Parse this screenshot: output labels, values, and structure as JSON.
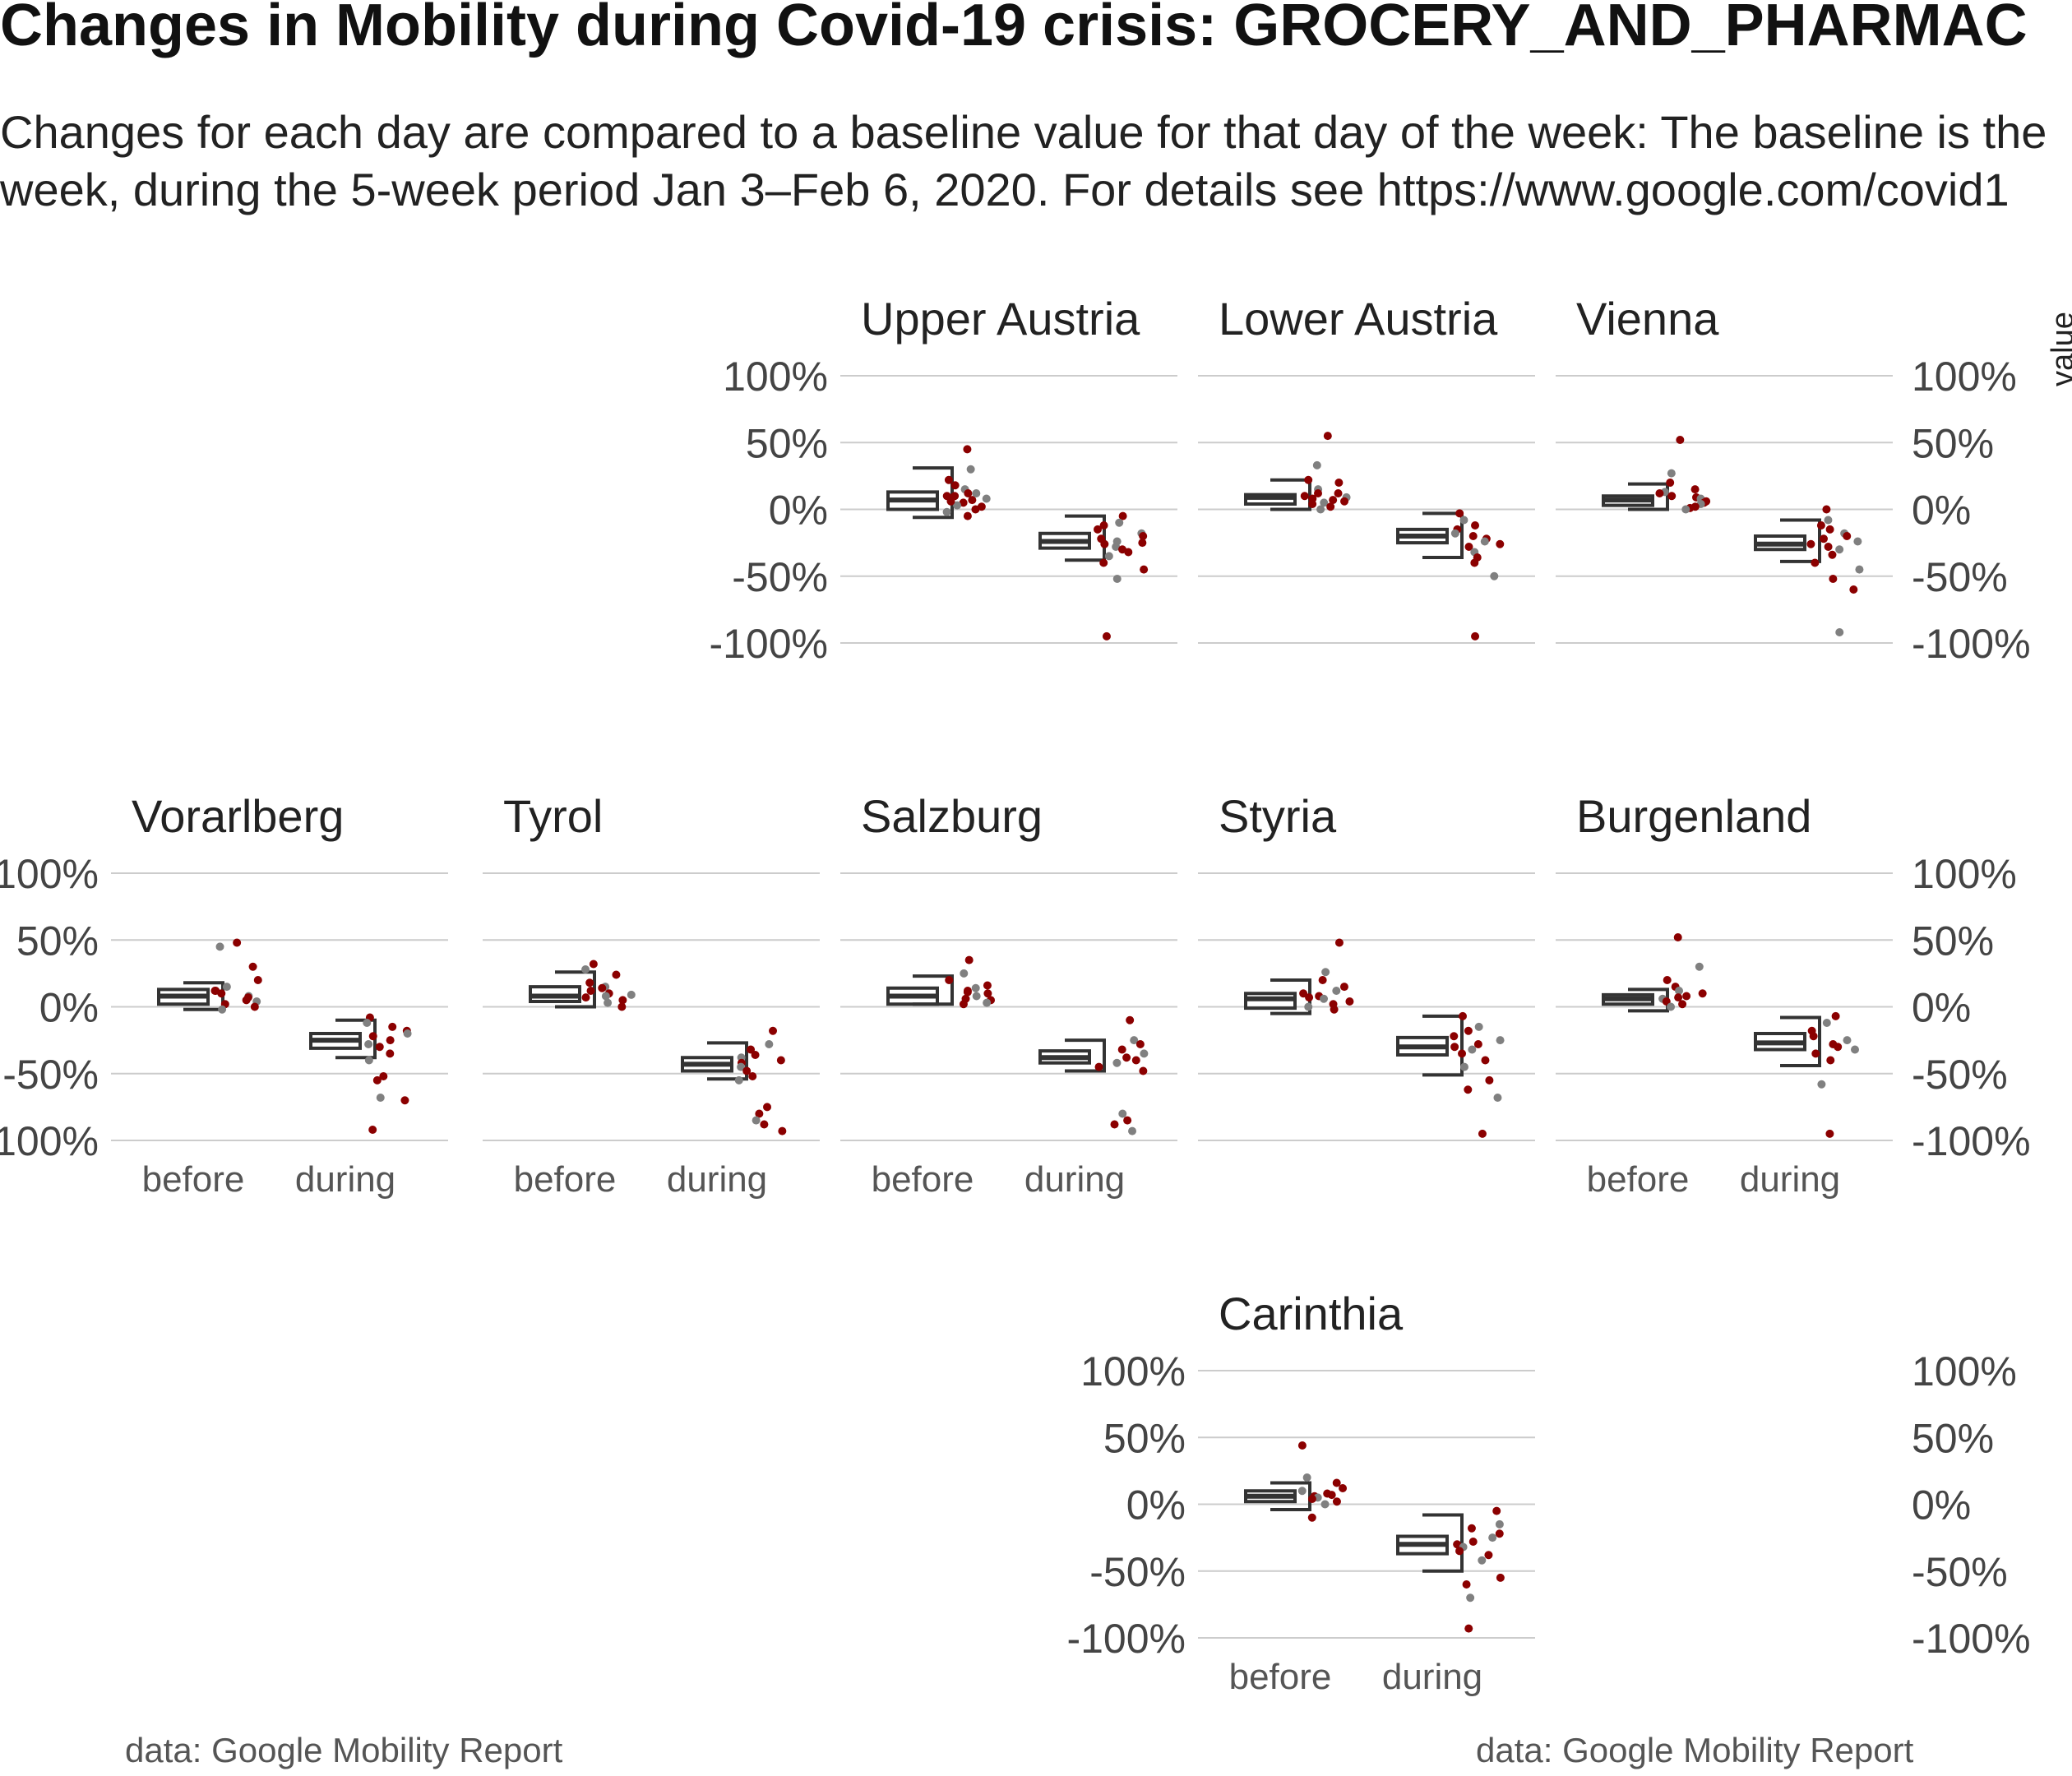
{
  "title": "Changes in Mobility during Covid-19 crisis: GROCERY_AND_PHARMAC",
  "subtitle_line1": "Changes for each day are compared to a baseline value for that day of the week: The baseline is the",
  "subtitle_line2": "week, during the 5-week period Jan 3–Feb 6, 2020. For details see https://www.google.com/covid1",
  "caption_left": "data: Google Mobility Report",
  "caption_right": "data: Google Mobility Report",
  "legend_title": "value",
  "colors": {
    "point_red": "#8b0000",
    "point_grey": "#808080",
    "box": "#333333",
    "grid": "#cccccc"
  },
  "chart_data": {
    "type": "boxplot with jittered points (faceted)",
    "categories": [
      "before",
      "during"
    ],
    "y_ticks": [
      "100%",
      "50%",
      "0%",
      "-50%",
      "-100%"
    ],
    "y_tick_values": [
      100,
      50,
      0,
      -50,
      -100
    ],
    "ylim": [
      -100,
      100
    ],
    "grid": true,
    "legend_placement": "right",
    "facets": [
      {
        "name": "Upper Austria",
        "before": {
          "q1": 0,
          "median": 7,
          "q3": 13,
          "whisker_low": -6,
          "whisker_high": 31
        },
        "during": {
          "q1": -29,
          "median": -24,
          "q3": -18,
          "whisker_low": -38,
          "whisker_high": -5
        },
        "points_before": [
          45,
          30,
          22,
          18,
          15,
          12,
          10,
          8,
          7,
          5,
          3,
          2,
          0,
          -2,
          -5,
          10,
          12,
          6
        ],
        "points_during": [
          -5,
          -10,
          -12,
          -15,
          -18,
          -20,
          -22,
          -24,
          -25,
          -26,
          -28,
          -30,
          -32,
          -35,
          -40,
          -45,
          -52,
          -95
        ]
      },
      {
        "name": "Lower Austria",
        "before": {
          "q1": 4,
          "median": 9,
          "q3": 11,
          "whisker_low": 0,
          "whisker_high": 22
        },
        "during": {
          "q1": -25,
          "median": -20,
          "q3": -15,
          "whisker_low": -36,
          "whisker_high": -3
        },
        "points_before": [
          55,
          33,
          22,
          20,
          15,
          12,
          10,
          9,
          8,
          6,
          5,
          4,
          2,
          0,
          12,
          7
        ],
        "points_during": [
          -3,
          -8,
          -12,
          -15,
          -18,
          -20,
          -22,
          -24,
          -26,
          -28,
          -32,
          -36,
          -40,
          -50,
          -95
        ]
      },
      {
        "name": "Vienna",
        "before": {
          "q1": 3,
          "median": 7,
          "q3": 10,
          "whisker_low": 0,
          "whisker_high": 19
        },
        "during": {
          "q1": -30,
          "median": -26,
          "q3": -20,
          "whisker_low": -39,
          "whisker_high": -8
        },
        "points_before": [
          52,
          27,
          20,
          15,
          13,
          10,
          9,
          8,
          6,
          5,
          4,
          2,
          1,
          0,
          12
        ],
        "points_during": [
          0,
          -8,
          -12,
          -15,
          -18,
          -20,
          -22,
          -24,
          -26,
          -28,
          -30,
          -34,
          -40,
          -45,
          -52,
          -60,
          -92
        ]
      },
      {
        "name": "Vorarlberg",
        "before": {
          "q1": 2,
          "median": 8,
          "q3": 13,
          "whisker_low": -2,
          "whisker_high": 18
        },
        "during": {
          "q1": -31,
          "median": -25,
          "q3": -20,
          "whisker_low": -38,
          "whisker_high": -10
        },
        "points_before": [
          48,
          45,
          30,
          20,
          15,
          12,
          10,
          8,
          7,
          5,
          4,
          2,
          0,
          -2,
          12
        ],
        "points_during": [
          -8,
          -12,
          -15,
          -18,
          -20,
          -22,
          -25,
          -28,
          -30,
          -35,
          -40,
          -52,
          -55,
          -68,
          -70,
          -92
        ]
      },
      {
        "name": "Tyrol",
        "before": {
          "q1": 4,
          "median": 8,
          "q3": 15,
          "whisker_low": 0,
          "whisker_high": 26
        },
        "during": {
          "q1": -48,
          "median": -43,
          "q3": -38,
          "whisker_low": -54,
          "whisker_high": -27
        },
        "points_before": [
          32,
          28,
          24,
          18,
          15,
          12,
          10,
          8,
          7,
          5,
          3,
          0,
          14,
          9
        ],
        "points_during": [
          -18,
          -28,
          -32,
          -36,
          -38,
          -40,
          -42,
          -45,
          -48,
          -52,
          -55,
          -75,
          -80,
          -85,
          -88,
          -93
        ]
      },
      {
        "name": "Salzburg",
        "before": {
          "q1": 2,
          "median": 8,
          "q3": 14,
          "whisker_low": 2,
          "whisker_high": 23
        },
        "during": {
          "q1": -42,
          "median": -38,
          "q3": -33,
          "whisker_low": -48,
          "whisker_high": -25
        },
        "points_before": [
          35,
          25,
          20,
          16,
          14,
          12,
          10,
          8,
          6,
          5,
          3,
          2,
          11
        ],
        "points_during": [
          -10,
          -25,
          -28,
          -32,
          -35,
          -38,
          -40,
          -42,
          -45,
          -48,
          -80,
          -85,
          -88,
          -93
        ]
      },
      {
        "name": "Styria",
        "before": {
          "q1": -1,
          "median": 6,
          "q3": 10,
          "whisker_low": -5,
          "whisker_high": 20
        },
        "during": {
          "q1": -36,
          "median": -30,
          "q3": -23,
          "whisker_low": -51,
          "whisker_high": -7
        },
        "points_before": [
          48,
          26,
          20,
          15,
          12,
          10,
          8,
          6,
          4,
          2,
          0,
          -2,
          7
        ],
        "points_during": [
          -7,
          -15,
          -18,
          -22,
          -25,
          -28,
          -30,
          -32,
          -35,
          -40,
          -45,
          -55,
          -62,
          -68,
          -95
        ]
      },
      {
        "name": "Burgenland",
        "before": {
          "q1": 2,
          "median": 6,
          "q3": 9,
          "whisker_low": -3,
          "whisker_high": 13
        },
        "during": {
          "q1": -32,
          "median": -27,
          "q3": -20,
          "whisker_low": -44,
          "whisker_high": -8
        },
        "points_before": [
          52,
          30,
          20,
          15,
          12,
          10,
          8,
          6,
          4,
          2,
          0,
          7
        ],
        "points_during": [
          -7,
          -12,
          -18,
          -22,
          -25,
          -28,
          -30,
          -32,
          -35,
          -40,
          -58,
          -95
        ]
      },
      {
        "name": "Carinthia",
        "before": {
          "q1": 2,
          "median": 6,
          "q3": 10,
          "whisker_low": -4,
          "whisker_high": 16
        },
        "during": {
          "q1": -37,
          "median": -30,
          "q3": -24,
          "whisker_low": -50,
          "whisker_high": -8
        },
        "points_before": [
          44,
          20,
          16,
          12,
          10,
          8,
          6,
          5,
          4,
          2,
          0,
          -10,
          7
        ],
        "points_during": [
          -5,
          -15,
          -18,
          -22,
          -25,
          -28,
          -30,
          -32,
          -35,
          -38,
          -42,
          -55,
          -60,
          -70,
          -93
        ]
      }
    ]
  }
}
